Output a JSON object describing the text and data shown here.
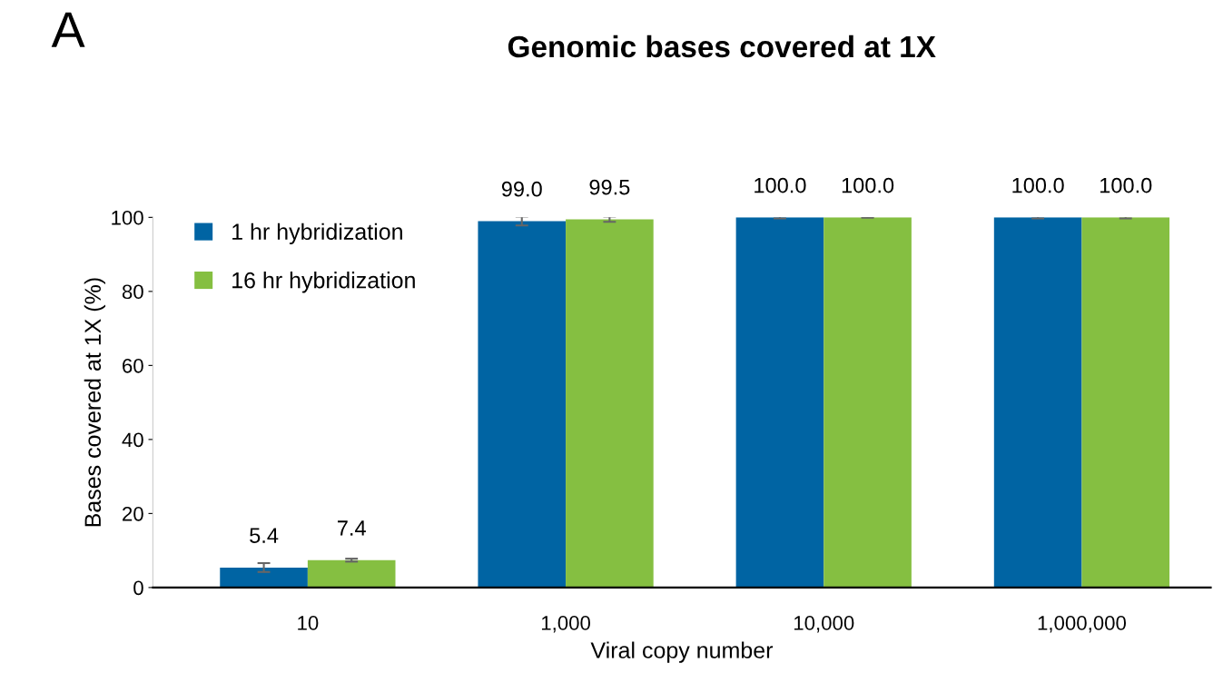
{
  "chart_data": {
    "type": "bar",
    "title": "Genomic bases covered at 1X",
    "xlabel": "Viral copy number",
    "ylabel": "Bases covered at 1X (%)",
    "annotations": [
      "A"
    ],
    "categories": [
      "10",
      "1,000",
      "10,000",
      "1,000,000"
    ],
    "series": [
      {
        "name": "1 hr hybridization",
        "color": "#0064a3",
        "values": [
          5.4,
          99.0,
          100.0,
          100.0
        ],
        "errors": [
          1.2,
          1.2,
          0.3,
          0.3
        ],
        "value_labels": [
          "5.4",
          "99.0",
          "100.0",
          "100.0"
        ]
      },
      {
        "name": "16 hr hybridization",
        "color": "#85bf41",
        "values": [
          7.4,
          99.5,
          100.0,
          100.0
        ],
        "errors": [
          0.4,
          0.7,
          0.1,
          0.3
        ],
        "value_labels": [
          "7.4",
          "99.5",
          "100.0",
          "100.0"
        ]
      }
    ],
    "ylim": [
      0,
      100
    ],
    "yticks": [
      0,
      20,
      40,
      60,
      80,
      100
    ],
    "grid": false,
    "legend": "top left"
  }
}
